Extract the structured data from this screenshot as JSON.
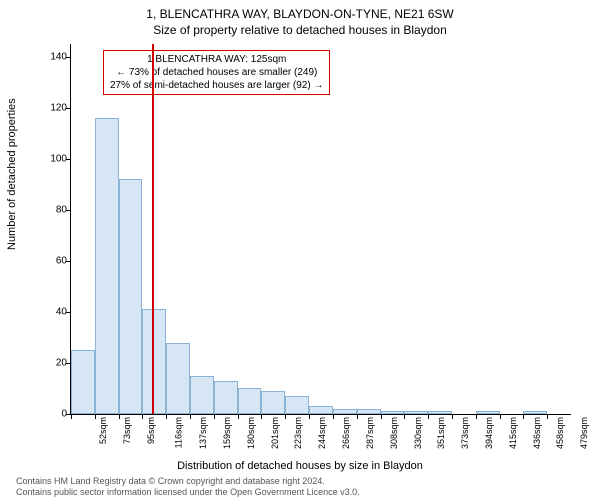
{
  "title1": "1, BLENCATHRA WAY, BLAYDON-ON-TYNE, NE21 6SW",
  "title2": "Size of property relative to detached houses in Blaydon",
  "y_axis_label": "Number of detached properties",
  "x_axis_label": "Distribution of detached houses by size in Blaydon",
  "chart": {
    "background_color": "#ffffff",
    "bar_fill": "#d6e6f5",
    "bar_border": "#8ab3d6",
    "marker_line_color": "#d00000",
    "annotation_border_color": "#d00000",
    "axis_color": "#000000",
    "ylim": [
      0,
      145
    ],
    "yticks": [
      0,
      20,
      40,
      60,
      80,
      100,
      120,
      140
    ],
    "bars": [
      {
        "label": "52sqm",
        "value": 25
      },
      {
        "label": "73sqm",
        "value": 116
      },
      {
        "label": "95sqm",
        "value": 92
      },
      {
        "label": "116sqm",
        "value": 41
      },
      {
        "label": "137sqm",
        "value": 28
      },
      {
        "label": "159sqm",
        "value": 15
      },
      {
        "label": "180sqm",
        "value": 13
      },
      {
        "label": "201sqm",
        "value": 10
      },
      {
        "label": "223sqm",
        "value": 9
      },
      {
        "label": "244sqm",
        "value": 7
      },
      {
        "label": "266sqm",
        "value": 3
      },
      {
        "label": "287sqm",
        "value": 2
      },
      {
        "label": "308sqm",
        "value": 2
      },
      {
        "label": "330sqm",
        "value": 1
      },
      {
        "label": "351sqm",
        "value": 1
      },
      {
        "label": "373sqm",
        "value": 1
      },
      {
        "label": "394sqm",
        "value": 0
      },
      {
        "label": "415sqm",
        "value": 1
      },
      {
        "label": "436sqm",
        "value": 0
      },
      {
        "label": "458sqm",
        "value": 1
      },
      {
        "label": "479sqm",
        "value": 0
      }
    ],
    "marker": {
      "bar_index": 3,
      "position_in_bar": 0.4
    },
    "annotation": {
      "line1": "1 BLENCATHRA WAY: 125sqm",
      "line2": "← 73% of detached houses are smaller (249)",
      "line3": "27% of semi-detached houses are larger (92) →"
    }
  },
  "footer_line1": "Contains HM Land Registry data © Crown copyright and database right 2024.",
  "footer_line2": "Contains public sector information licensed under the Open Government Licence v3.0."
}
